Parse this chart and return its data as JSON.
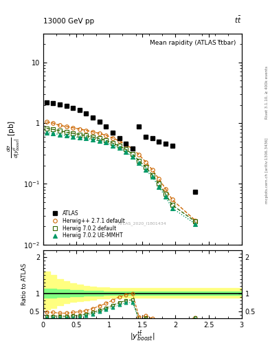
{
  "title_top": "13000 GeV pp",
  "title_top_right": "tt̅",
  "title_main": "Mean rapidity (ATLAS t̅tbar)",
  "watermark": "ATLAS_2020_I1801434",
  "right_label_top": "Rivet 3.1.10, ≥ 400k events",
  "right_label_bot": "mcplots.cern.ch [arXiv:1306.3436]",
  "ylabel_main": "dσ/d|yᵗᵗₕₙₒ₀₁ₜ| [pb]",
  "ylabel_ratio": "Ratio to ATLAS",
  "atlas_x": [
    0.05,
    0.15,
    0.25,
    0.35,
    0.45,
    0.55,
    0.65,
    0.75,
    0.85,
    0.95,
    1.05,
    1.15,
    1.25,
    1.35,
    1.45,
    1.55,
    1.65,
    1.75,
    1.85,
    1.95,
    2.3
  ],
  "atlas_y": [
    2.2,
    2.15,
    2.05,
    1.95,
    1.8,
    1.65,
    1.45,
    1.25,
    1.05,
    0.88,
    0.7,
    0.57,
    0.46,
    0.38,
    0.88,
    0.6,
    0.57,
    0.5,
    0.46,
    0.42,
    0.075
  ],
  "herwig_pp_x": [
    0.05,
    0.15,
    0.25,
    0.35,
    0.45,
    0.55,
    0.65,
    0.75,
    0.85,
    0.95,
    1.05,
    1.15,
    1.25,
    1.35,
    1.45,
    1.55,
    1.65,
    1.75,
    1.85,
    1.95,
    2.3
  ],
  "herwig_pp_y": [
    1.05,
    1.0,
    0.92,
    0.88,
    0.84,
    0.8,
    0.76,
    0.72,
    0.68,
    0.63,
    0.57,
    0.51,
    0.44,
    0.38,
    0.3,
    0.23,
    0.17,
    0.12,
    0.083,
    0.055,
    0.025
  ],
  "herwig702_x": [
    0.05,
    0.15,
    0.25,
    0.35,
    0.45,
    0.55,
    0.65,
    0.75,
    0.85,
    0.95,
    1.05,
    1.15,
    1.25,
    1.35,
    1.45,
    1.55,
    1.65,
    1.75,
    1.85,
    1.95,
    2.3
  ],
  "herwig702_y": [
    0.82,
    0.79,
    0.75,
    0.71,
    0.68,
    0.65,
    0.62,
    0.59,
    0.56,
    0.52,
    0.47,
    0.42,
    0.37,
    0.31,
    0.24,
    0.19,
    0.14,
    0.1,
    0.068,
    0.045,
    0.024
  ],
  "herwig702ue_x": [
    0.05,
    0.15,
    0.25,
    0.35,
    0.45,
    0.55,
    0.65,
    0.75,
    0.85,
    0.95,
    1.05,
    1.15,
    1.25,
    1.35,
    1.45,
    1.55,
    1.65,
    1.75,
    1.85,
    1.95,
    2.3
  ],
  "herwig702ue_y": [
    0.7,
    0.68,
    0.65,
    0.62,
    0.6,
    0.58,
    0.56,
    0.54,
    0.51,
    0.48,
    0.43,
    0.39,
    0.34,
    0.28,
    0.22,
    0.17,
    0.13,
    0.09,
    0.061,
    0.04,
    0.022
  ],
  "ratio_herwig_pp": [
    0.48,
    0.47,
    0.45,
    0.45,
    0.47,
    0.49,
    0.52,
    0.58,
    0.65,
    0.72,
    0.81,
    0.9,
    0.96,
    1.0,
    0.34,
    0.38,
    0.3,
    0.24,
    0.18,
    0.13,
    0.33
  ],
  "ratio_herwig702": [
    0.37,
    0.37,
    0.37,
    0.36,
    0.38,
    0.39,
    0.43,
    0.47,
    0.53,
    0.59,
    0.67,
    0.74,
    0.8,
    0.82,
    0.27,
    0.32,
    0.25,
    0.2,
    0.15,
    0.11,
    0.32
  ],
  "ratio_herwig702ue": [
    0.32,
    0.32,
    0.32,
    0.32,
    0.33,
    0.35,
    0.39,
    0.43,
    0.49,
    0.55,
    0.62,
    0.68,
    0.74,
    0.74,
    0.25,
    0.28,
    0.23,
    0.18,
    0.13,
    0.1,
    0.29
  ],
  "band_x_edges": [
    0.0,
    0.1,
    0.2,
    0.3,
    0.4,
    0.5,
    0.6,
    0.7,
    0.8,
    0.9,
    1.0,
    1.1,
    1.2,
    1.3,
    1.4,
    1.5,
    1.6,
    1.7,
    1.8,
    1.9,
    2.0,
    3.0
  ],
  "band_green_lo": [
    0.88,
    0.88,
    0.9,
    0.9,
    0.91,
    0.92,
    0.93,
    0.94,
    0.94,
    0.95,
    0.95,
    0.95,
    0.95,
    0.95,
    0.95,
    0.95,
    0.95,
    0.95,
    0.95,
    0.95,
    0.95,
    0.95
  ],
  "band_green_hi": [
    1.12,
    1.12,
    1.1,
    1.1,
    1.09,
    1.08,
    1.07,
    1.06,
    1.06,
    1.05,
    1.05,
    1.05,
    1.05,
    1.05,
    1.05,
    1.05,
    1.05,
    1.05,
    1.05,
    1.05,
    1.05,
    1.05
  ],
  "band_yellow_lo": [
    0.55,
    0.6,
    0.67,
    0.72,
    0.76,
    0.79,
    0.81,
    0.83,
    0.85,
    0.86,
    0.87,
    0.87,
    0.87,
    0.87,
    0.87,
    0.87,
    0.87,
    0.87,
    0.87,
    0.87,
    0.87,
    0.87
  ],
  "band_yellow_hi": [
    1.6,
    1.5,
    1.4,
    1.33,
    1.28,
    1.24,
    1.21,
    1.19,
    1.17,
    1.16,
    1.15,
    1.15,
    1.15,
    1.15,
    1.15,
    1.15,
    1.15,
    1.15,
    1.15,
    1.15,
    1.15,
    1.15
  ],
  "color_atlas": "#000000",
  "color_herwig_pp": "#cc6600",
  "color_herwig702": "#336600",
  "color_herwig702ue": "#009966",
  "color_band_green": "#80ff80",
  "color_band_yellow": "#ffff80",
  "xlim": [
    0,
    3
  ],
  "ylim_main": [
    0.01,
    30
  ],
  "ylim_ratio": [
    0.3,
    2.2
  ],
  "main_yticks": [
    0.01,
    0.1,
    1,
    10
  ],
  "main_ytick_labels": [
    "$10^{-2}$",
    "$10^{-1}$",
    "1",
    "10"
  ],
  "ratio_yticks": [
    0.5,
    1.0,
    2.0
  ],
  "ratio_ytick_labels": [
    "0.5",
    "1",
    "2"
  ]
}
